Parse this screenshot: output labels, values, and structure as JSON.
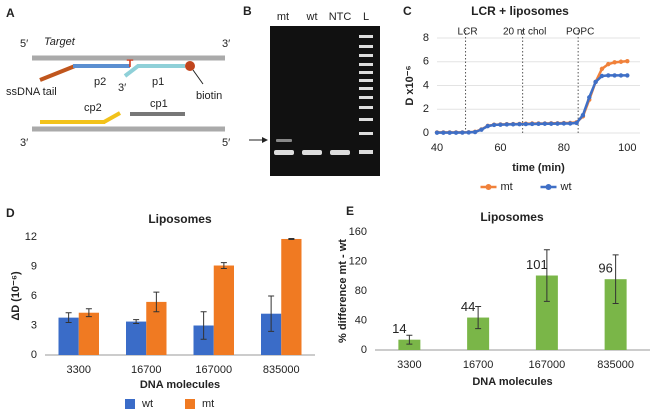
{
  "panels": {
    "a": {
      "label": "A",
      "top_left": "5′",
      "target": "Target",
      "top_right": "3′",
      "tail": "ssDNA tail",
      "p2": "p2",
      "p2_end": "3′",
      "base": "T",
      "p1": "p1",
      "biotin": "biotin",
      "cp2": "cp2",
      "cp1": "cp1",
      "bottom_left": "3′",
      "bottom_right": "5′"
    },
    "b": {
      "label": "B",
      "lanes": [
        "mt",
        "wt",
        "NTC",
        "L"
      ]
    }
  },
  "chart_data": [
    {
      "type": "line",
      "panel": "C",
      "title": "LCR + liposomes",
      "x_label": "time (min)",
      "y_label": "D x10⁻⁶",
      "x": [
        40,
        42,
        44,
        46,
        48,
        50,
        52,
        54,
        56,
        58,
        60,
        62,
        64,
        66,
        68,
        70,
        72,
        74,
        76,
        78,
        80,
        82,
        84,
        86,
        88,
        90,
        92,
        94,
        96,
        98,
        100
      ],
      "series": [
        {
          "name": "mt",
          "color": "#f0813a",
          "values": [
            0.05,
            0.05,
            0.05,
            0.05,
            0.05,
            0.06,
            0.1,
            0.3,
            0.6,
            0.7,
            0.72,
            0.74,
            0.75,
            0.76,
            0.78,
            0.8,
            0.8,
            0.8,
            0.82,
            0.82,
            0.84,
            0.85,
            0.9,
            1.4,
            2.8,
            4.3,
            5.4,
            5.8,
            5.95,
            6.0,
            6.05
          ]
        },
        {
          "name": "wt",
          "color": "#3f6fc6",
          "values": [
            0.03,
            0.03,
            0.03,
            0.03,
            0.04,
            0.05,
            0.08,
            0.28,
            0.58,
            0.68,
            0.7,
            0.72,
            0.73,
            0.74,
            0.75,
            0.76,
            0.77,
            0.78,
            0.78,
            0.79,
            0.8,
            0.8,
            0.85,
            1.5,
            3.0,
            4.3,
            4.8,
            4.85,
            4.85,
            4.85,
            4.85
          ]
        }
      ],
      "annotations": [
        {
          "text": "LCR",
          "x": 49
        },
        {
          "text": "20 nt chol",
          "x": 67
        },
        {
          "text": "POPC",
          "x": 84.5
        }
      ],
      "xlim": [
        40,
        104
      ],
      "xticks": [
        40,
        60,
        80,
        100
      ],
      "ylim": [
        0,
        8
      ],
      "yticks": [
        0,
        2,
        4,
        6,
        8
      ],
      "grid": true,
      "legend": "bottom"
    },
    {
      "type": "bar",
      "panel": "D",
      "title": "Liposomes",
      "x_label": "DNA molecules",
      "y_label": "ΔD (10⁻⁶)",
      "categories": [
        "3300",
        "16700",
        "167000",
        "835000"
      ],
      "series": [
        {
          "name": "wt",
          "color": "#3a6cc8",
          "values": [
            3.8,
            3.4,
            3.0,
            4.2
          ],
          "errors": [
            0.5,
            0.2,
            1.4,
            1.8
          ]
        },
        {
          "name": "mt",
          "color": "#f07a22",
          "values": [
            4.3,
            5.4,
            9.1,
            11.8
          ],
          "errors": [
            0.4,
            1.0,
            0.3,
            0.05
          ]
        }
      ],
      "ylim": [
        0,
        12
      ],
      "yticks": [
        0,
        3,
        6,
        9,
        12
      ],
      "grid": false,
      "legend": "bottom"
    },
    {
      "type": "bar",
      "panel": "E",
      "title": "Liposomes",
      "x_label": "DNA molecules",
      "y_label": "% difference mt - wt",
      "categories": [
        "3300",
        "16700",
        "167000",
        "835000"
      ],
      "series": [
        {
          "color": "#7ab648",
          "values": [
            14,
            44,
            101,
            96
          ],
          "errors": [
            6,
            15,
            35,
            33
          ]
        }
      ],
      "ylim": [
        0,
        160
      ],
      "yticks": [
        0,
        40,
        80,
        120,
        160
      ],
      "grid": false
    }
  ]
}
